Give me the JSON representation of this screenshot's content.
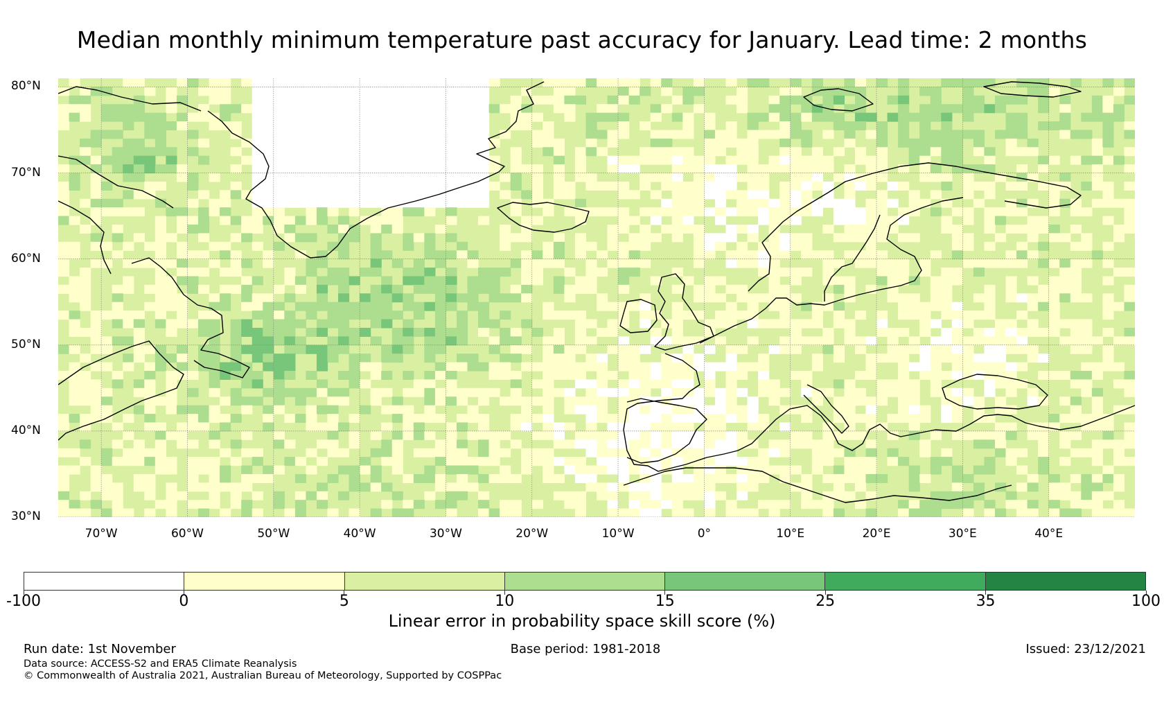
{
  "title": "Median monthly minimum temperature past accuracy for January. Lead time: 2 months",
  "map": {
    "lat_labels": [
      "80°N",
      "70°N",
      "60°N",
      "50°N",
      "40°N",
      "30°N"
    ],
    "lon_labels": [
      "70°W",
      "60°W",
      "50°W",
      "40°W",
      "30°W",
      "20°W",
      "10°W",
      "0°",
      "10°E",
      "20°E",
      "30°E",
      "40°E"
    ],
    "lat_range": [
      30,
      81
    ],
    "lon_range": [
      -75,
      50
    ]
  },
  "colorbar": {
    "title": "Linear error in probability space skill score (%)",
    "tick_labels": [
      "-100",
      "0",
      "5",
      "10",
      "15",
      "25",
      "35",
      "100"
    ],
    "colors": [
      "#ffffff",
      "#ffffcc",
      "#d9f0a3",
      "#addd8e",
      "#78c679",
      "#41ab5d",
      "#238443"
    ]
  },
  "footer": {
    "run_date": "Run date: 1st November",
    "base_period": "Base period: 1981-2018",
    "issued": "Issued: 23/12/2021",
    "data_source": "Data source: ACCESS-S2 and ERA5 Climate Reanalysis",
    "copyright": "© Commonwealth of Australia 2021, Australian Bureau of Meteorology, Supported by COSPPac"
  }
}
